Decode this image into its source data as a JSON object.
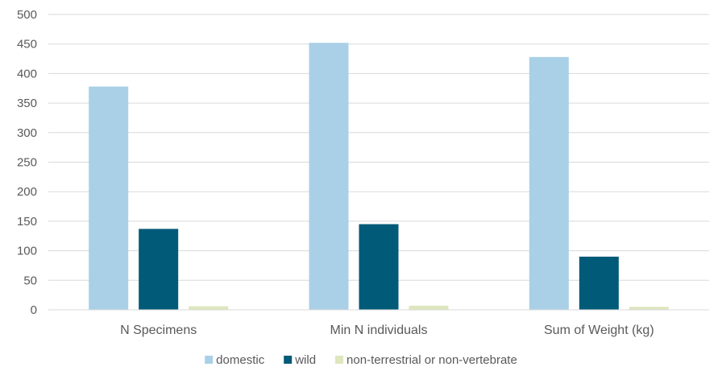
{
  "chart_data": {
    "type": "bar",
    "title": "",
    "xlabel": "",
    "ylabel": "",
    "categories": [
      "N Specimens",
      "Min N individuals",
      "Sum of Weight (kg)"
    ],
    "series": [
      {
        "name": "domestic",
        "color": "#a9d0e6",
        "values": [
          378,
          452,
          428
        ]
      },
      {
        "name": "wild",
        "color": "#005a78",
        "values": [
          137,
          145,
          90
        ]
      },
      {
        "name": "non-terrestrial or non-vertebrate",
        "color": "#dde6bd",
        "values": [
          6,
          7,
          5
        ]
      }
    ],
    "ylim": [
      0,
      500
    ],
    "yticks": [
      0,
      50,
      100,
      150,
      200,
      250,
      300,
      350,
      400,
      450,
      500
    ],
    "grid": true,
    "legend_position": "bottom"
  }
}
